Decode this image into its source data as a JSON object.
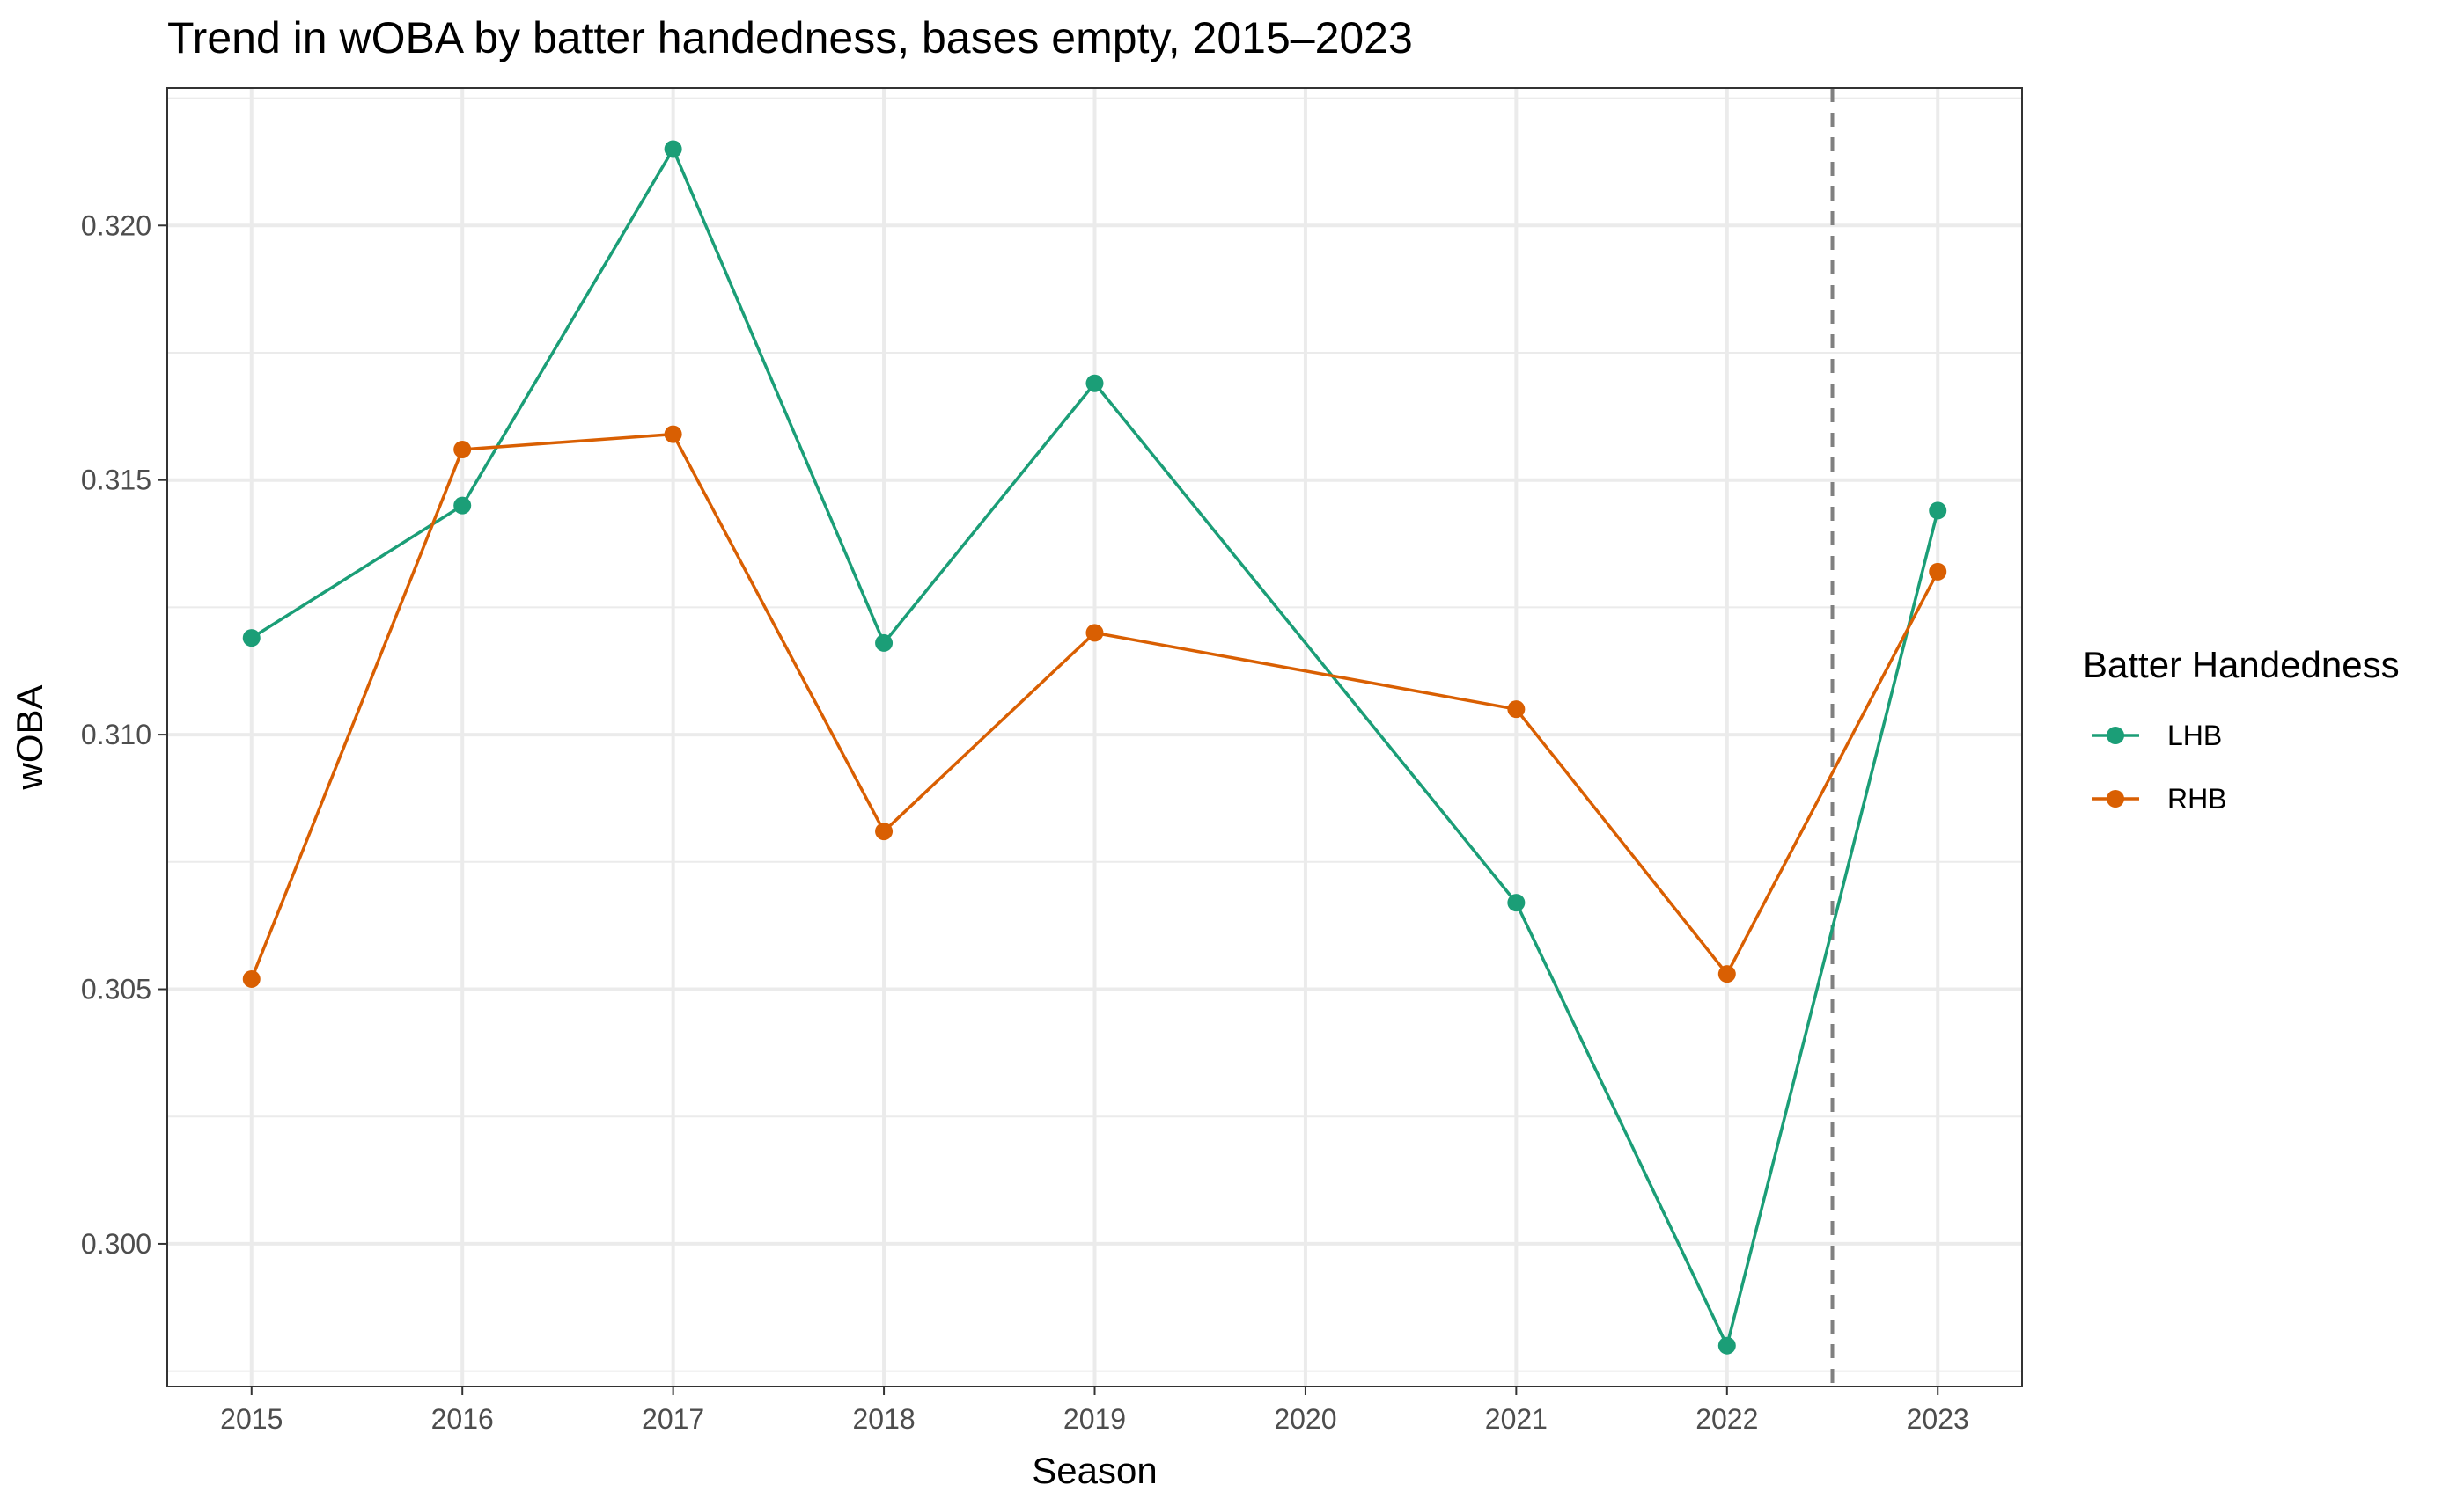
{
  "chart_data": {
    "type": "line",
    "title": "Trend in wOBA by batter handedness, bases empty, 2015–2023",
    "xlabel": "Season",
    "ylabel": "wOBA",
    "x": [
      2015,
      2016,
      2017,
      2018,
      2019,
      2020,
      2021,
      2022,
      2023
    ],
    "x_ticks": [
      "2015",
      "2016",
      "2017",
      "2018",
      "2019",
      "2020",
      "2021",
      "2022",
      "2023"
    ],
    "y_ticks": [
      "0.300",
      "0.305",
      "0.310",
      "0.315",
      "0.320"
    ],
    "xlim": [
      2014.6,
      2023.4
    ],
    "ylim": [
      0.2972,
      0.3227
    ],
    "grid": true,
    "reference_line": {
      "x": 2022.5,
      "style": "dashed",
      "color": "#808080"
    },
    "legend": {
      "title": "Batter Handedness",
      "position": "right"
    },
    "series": [
      {
        "name": "LHB",
        "color": "#1b9e77",
        "points": [
          {
            "x": 2015,
            "y": 0.3119
          },
          {
            "x": 2016,
            "y": 0.3145
          },
          {
            "x": 2017,
            "y": 0.3215
          },
          {
            "x": 2018,
            "y": 0.3118
          },
          {
            "x": 2019,
            "y": 0.3169
          },
          {
            "x": 2021,
            "y": 0.3067
          },
          {
            "x": 2022,
            "y": 0.298
          },
          {
            "x": 2023,
            "y": 0.3144
          }
        ]
      },
      {
        "name": "RHB",
        "color": "#d95f02",
        "points": [
          {
            "x": 2015,
            "y": 0.3052
          },
          {
            "x": 2016,
            "y": 0.3156
          },
          {
            "x": 2017,
            "y": 0.3159
          },
          {
            "x": 2018,
            "y": 0.3081
          },
          {
            "x": 2019,
            "y": 0.312
          },
          {
            "x": 2021,
            "y": 0.3105
          },
          {
            "x": 2022,
            "y": 0.3053
          },
          {
            "x": 2023,
            "y": 0.3132
          }
        ]
      }
    ]
  }
}
